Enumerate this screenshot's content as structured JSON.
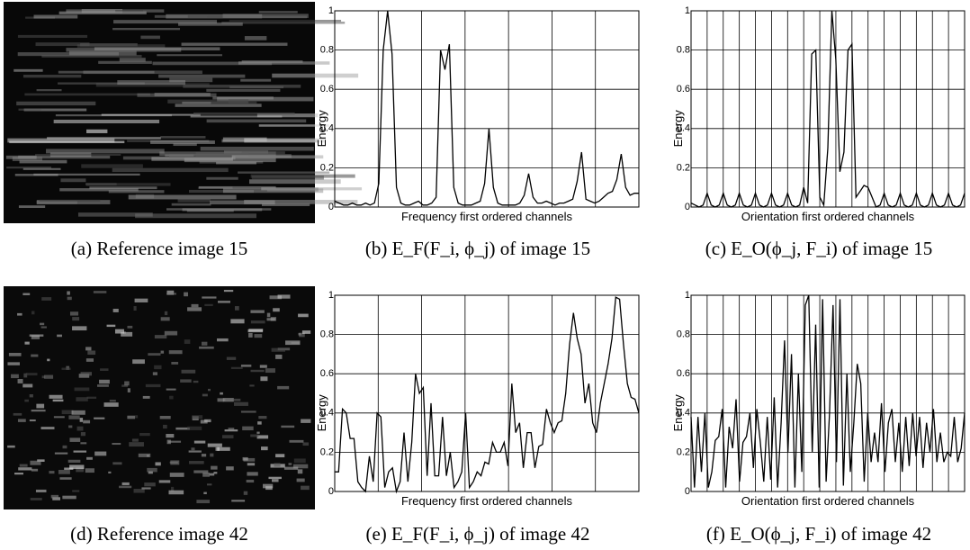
{
  "images": [
    {
      "caption": "(a) Reference image 15"
    },
    {
      "caption": "(d) Reference image 42"
    }
  ],
  "chart_data": [
    {
      "type": "line",
      "caption": "(b) E_F(F_i, ϕ_j) of image 15",
      "xlabel": "Frequency first ordered channels",
      "ylabel": "Energy",
      "color": "#000000",
      "grid": true,
      "grid_columns": 7,
      "ylim": [
        0,
        1
      ],
      "yticks": [
        0,
        0.2,
        0.4,
        0.6,
        0.8,
        1
      ],
      "values": [
        0.03,
        0.02,
        0.01,
        0.01,
        0.02,
        0.01,
        0.01,
        0.02,
        0.01,
        0.02,
        0.12,
        0.8,
        1.0,
        0.78,
        0.1,
        0.02,
        0.01,
        0.01,
        0.02,
        0.03,
        0.01,
        0.01,
        0.02,
        0.05,
        0.8,
        0.7,
        0.83,
        0.1,
        0.02,
        0.01,
        0.01,
        0.01,
        0.02,
        0.03,
        0.12,
        0.4,
        0.1,
        0.02,
        0.01,
        0.01,
        0.01,
        0.01,
        0.02,
        0.06,
        0.17,
        0.05,
        0.02,
        0.02,
        0.03,
        0.02,
        0.01,
        0.02,
        0.02,
        0.03,
        0.04,
        0.13,
        0.28,
        0.04,
        0.03,
        0.02,
        0.03,
        0.05,
        0.07,
        0.08,
        0.14,
        0.27,
        0.1,
        0.06,
        0.07,
        0.07
      ]
    },
    {
      "type": "line",
      "caption": "(c) E_O(ϕ_j, F_i) of image 15",
      "xlabel": "Orientation first ordered channels",
      "ylabel": "Energy",
      "color": "#000000",
      "grid": true,
      "grid_columns": 17,
      "ylim": [
        0,
        1
      ],
      "yticks": [
        0,
        0.2,
        0.4,
        0.6,
        0.8,
        1
      ],
      "values": [
        0.02,
        0.01,
        0.0,
        0.01,
        0.07,
        0.01,
        0.0,
        0.01,
        0.07,
        0.01,
        0.0,
        0.01,
        0.07,
        0.01,
        0.0,
        0.01,
        0.07,
        0.01,
        0.0,
        0.01,
        0.07,
        0.01,
        0.0,
        0.01,
        0.07,
        0.01,
        0.0,
        0.01,
        0.1,
        0.02,
        0.78,
        0.8,
        0.05,
        0.01,
        0.3,
        1.0,
        0.75,
        0.18,
        0.28,
        0.8,
        0.83,
        0.05,
        0.08,
        0.11,
        0.1,
        0.05,
        0.0,
        0.01,
        0.07,
        0.01,
        0.0,
        0.01,
        0.07,
        0.01,
        0.0,
        0.01,
        0.07,
        0.01,
        0.0,
        0.01,
        0.07,
        0.01,
        0.0,
        0.01,
        0.07,
        0.01,
        0.0,
        0.01,
        0.07
      ]
    },
    {
      "type": "line",
      "caption": "(e) E_F(F_i, ϕ_j) of image 42",
      "xlabel": "Frequency first ordered channels",
      "ylabel": "Energy",
      "color": "#000000",
      "grid": true,
      "grid_columns": 7,
      "ylim": [
        0,
        1
      ],
      "yticks": [
        0,
        0.2,
        0.4,
        0.6,
        0.8,
        1
      ],
      "values": [
        0.1,
        0.1,
        0.42,
        0.4,
        0.27,
        0.27,
        0.05,
        0.02,
        0.0,
        0.18,
        0.05,
        0.4,
        0.38,
        0.02,
        0.1,
        0.12,
        0.0,
        0.05,
        0.3,
        0.05,
        0.25,
        0.6,
        0.5,
        0.53,
        0.08,
        0.45,
        0.08,
        0.08,
        0.38,
        0.08,
        0.2,
        0.02,
        0.05,
        0.1,
        0.4,
        0.02,
        0.05,
        0.1,
        0.08,
        0.15,
        0.14,
        0.25,
        0.2,
        0.2,
        0.25,
        0.13,
        0.55,
        0.3,
        0.35,
        0.12,
        0.3,
        0.3,
        0.12,
        0.23,
        0.24,
        0.42,
        0.35,
        0.3,
        0.35,
        0.36,
        0.5,
        0.75,
        0.91,
        0.78,
        0.7,
        0.45,
        0.55,
        0.35,
        0.3,
        0.45,
        0.55,
        0.65,
        0.78,
        0.99,
        0.98,
        0.75,
        0.55,
        0.48,
        0.47,
        0.4
      ]
    },
    {
      "type": "line",
      "caption": "(f) E_O(ϕ_j, F_i) of image 42",
      "xlabel": "Orientation first ordered channels",
      "ylabel": "Energy",
      "color": "#000000",
      "grid": true,
      "grid_columns": 17,
      "ylim": [
        0,
        1
      ],
      "yticks": [
        0,
        0.2,
        0.4,
        0.6,
        0.8,
        1
      ],
      "values": [
        0.38,
        0.02,
        0.38,
        0.1,
        0.4,
        0.02,
        0.1,
        0.26,
        0.28,
        0.42,
        0.02,
        0.33,
        0.22,
        0.47,
        0.05,
        0.25,
        0.28,
        0.4,
        0.12,
        0.42,
        0.25,
        0.05,
        0.38,
        0.06,
        0.48,
        0.02,
        0.35,
        0.77,
        0.2,
        0.7,
        0.02,
        0.6,
        0.1,
        0.95,
        1.0,
        0.2,
        0.85,
        0.02,
        0.98,
        0.05,
        0.4,
        0.95,
        0.15,
        0.98,
        0.03,
        0.6,
        0.1,
        0.35,
        0.65,
        0.55,
        0.05,
        0.4,
        0.15,
        0.3,
        0.15,
        0.45,
        0.1,
        0.35,
        0.42,
        0.15,
        0.35,
        0.1,
        0.38,
        0.13,
        0.4,
        0.18,
        0.38,
        0.12,
        0.35,
        0.2,
        0.42,
        0.15,
        0.3,
        0.15,
        0.2,
        0.18,
        0.38,
        0.15,
        0.22,
        0.4
      ]
    }
  ]
}
